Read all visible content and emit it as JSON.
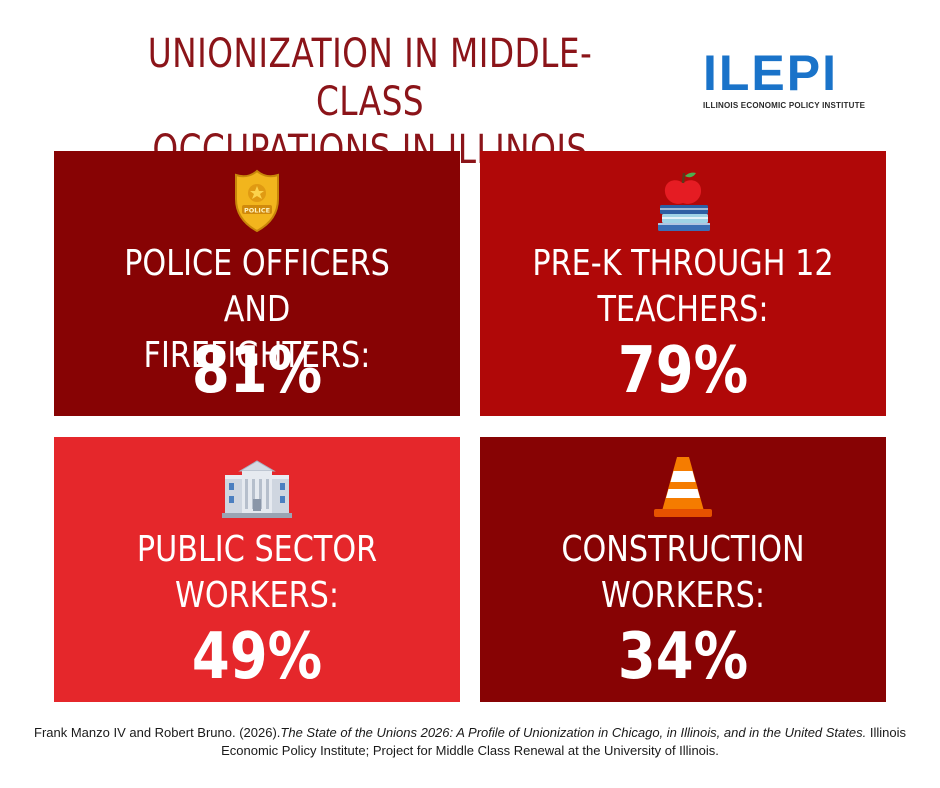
{
  "title": {
    "line1": "UNIONIZATION IN MIDDLE-CLASS",
    "line2": "OCCUPATIONS IN ILLINOIS"
  },
  "logo": {
    "mark": "ILEPI",
    "subtitle": "ILLINOIS ECONOMIC POLICY INSTITUTE"
  },
  "cards": [
    {
      "line1": "POLICE OFFICERS AND",
      "line2": "FIREFIGHTERS:",
      "value": "81%",
      "icon": "police-badge-icon",
      "badge_text": "POLICE",
      "color": "#870304"
    },
    {
      "line1": "PRE-K THROUGH 12",
      "line2": "TEACHERS:",
      "value": "79%",
      "icon": "apple-books-icon",
      "color": "#b00808"
    },
    {
      "line1": "PUBLIC SECTOR",
      "line2": "WORKERS:",
      "value": "49%",
      "icon": "government-building-icon",
      "color": "#e5272b"
    },
    {
      "line1": "CONSTRUCTION",
      "line2": "WORKERS:",
      "value": "34%",
      "icon": "traffic-cone-icon",
      "color": "#870304"
    }
  ],
  "citation": {
    "authors": "Frank Manzo IV and Robert Bruno. (2026).",
    "title": "The State of the Unions 2026: A Profile of Unionization in Chicago, in Illinois, and in the United States.",
    "publisher": " Illinois Economic Policy Institute; Project for Middle Class Renewal at the University of Illinois."
  }
}
